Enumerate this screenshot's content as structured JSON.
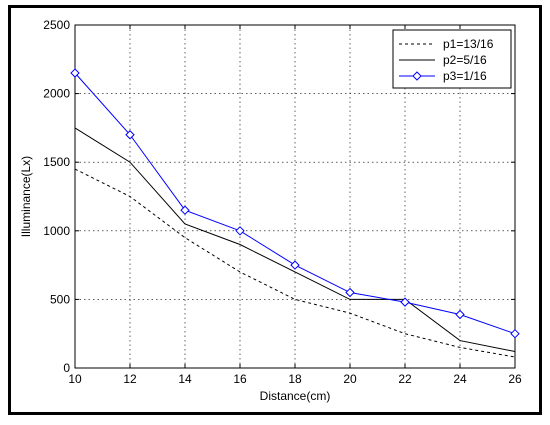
{
  "chart_data": {
    "type": "line",
    "title": "",
    "xlabel": "Distance(cm)",
    "ylabel": "Illuminance(Lx)",
    "xlim": [
      10,
      26
    ],
    "ylim": [
      0,
      2500
    ],
    "x_ticks": [
      10,
      12,
      14,
      16,
      18,
      20,
      22,
      24,
      26
    ],
    "y_ticks": [
      0,
      500,
      1000,
      1500,
      2000,
      2500
    ],
    "grid": true,
    "legend_position": "top-right",
    "x": [
      10,
      12,
      14,
      16,
      18,
      20,
      22,
      24,
      26
    ],
    "series": [
      {
        "name": "p1=13/16",
        "style": "dashed",
        "color": "#000000",
        "marker": "none",
        "values": [
          1450,
          1250,
          950,
          700,
          500,
          400,
          250,
          150,
          80
        ]
      },
      {
        "name": "p2=5/16",
        "style": "solid",
        "color": "#000000",
        "marker": "none",
        "values": [
          1750,
          1500,
          1050,
          900,
          700,
          500,
          500,
          200,
          120
        ]
      },
      {
        "name": "p3=1/16",
        "style": "solid",
        "color": "#0000ff",
        "marker": "diamond",
        "values": [
          2150,
          1700,
          1150,
          1000,
          750,
          550,
          480,
          390,
          250
        ]
      }
    ]
  }
}
